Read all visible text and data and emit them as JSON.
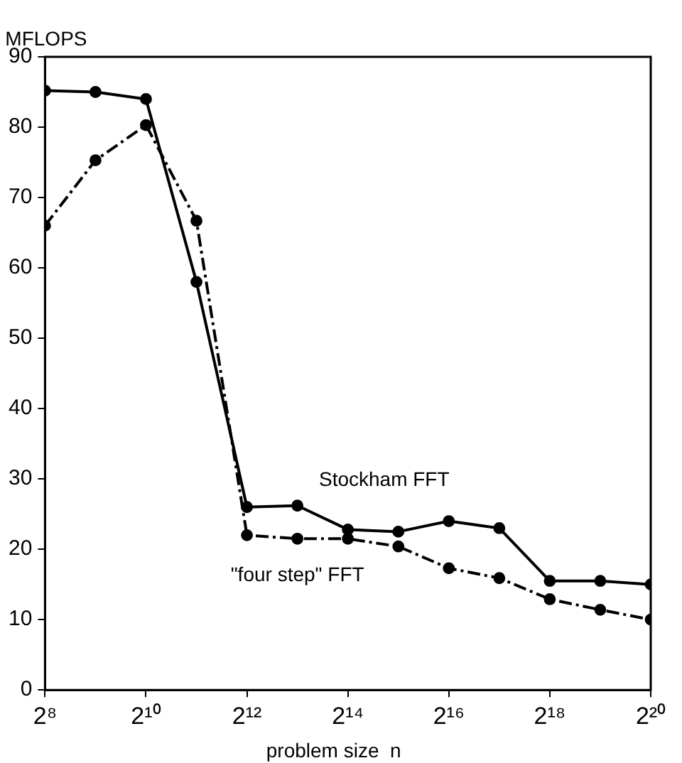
{
  "chart_data": {
    "type": "line",
    "ylabel": "MFLOPS",
    "xlabel": "problem size  n",
    "x": [
      256,
      512,
      1024,
      2048,
      4096,
      8192,
      16384,
      32768,
      65536,
      131072,
      262144,
      524288,
      1048576
    ],
    "series": [
      {
        "name": "Stockham FFT",
        "color": "#000000",
        "line_style": "solid",
        "values": [
          85.2,
          85,
          84,
          58,
          26,
          26.2,
          22.8,
          22.5,
          24,
          23,
          15.5,
          15.5,
          15
        ]
      },
      {
        "name": "\"four step\" FFT",
        "color": "#000000",
        "line_style": "dashed",
        "values": [
          66,
          75.3,
          80.3,
          66.7,
          22,
          21.5,
          21.5,
          20.4,
          17.3,
          15.9,
          12.9,
          11.4,
          10
        ]
      }
    ],
    "log": "x",
    "xlim": [
      256,
      1048576
    ],
    "xticks": [
      {
        "value": 256,
        "label": "2⁸"
      },
      {
        "value": 1024,
        "label": "2¹⁰"
      },
      {
        "value": 4096,
        "label": "2¹²"
      },
      {
        "value": 16384,
        "label": "2¹⁴"
      },
      {
        "value": 65536,
        "label": "2¹⁶"
      },
      {
        "value": 262144,
        "label": "2¹⁸"
      },
      {
        "value": 1048576,
        "label": "2²⁰"
      }
    ],
    "ylim": [
      0,
      90
    ],
    "yticks": [
      0,
      10,
      20,
      30,
      40,
      50,
      60,
      70,
      80,
      90
    ],
    "grid": false,
    "legend": false,
    "marker": "circle"
  }
}
